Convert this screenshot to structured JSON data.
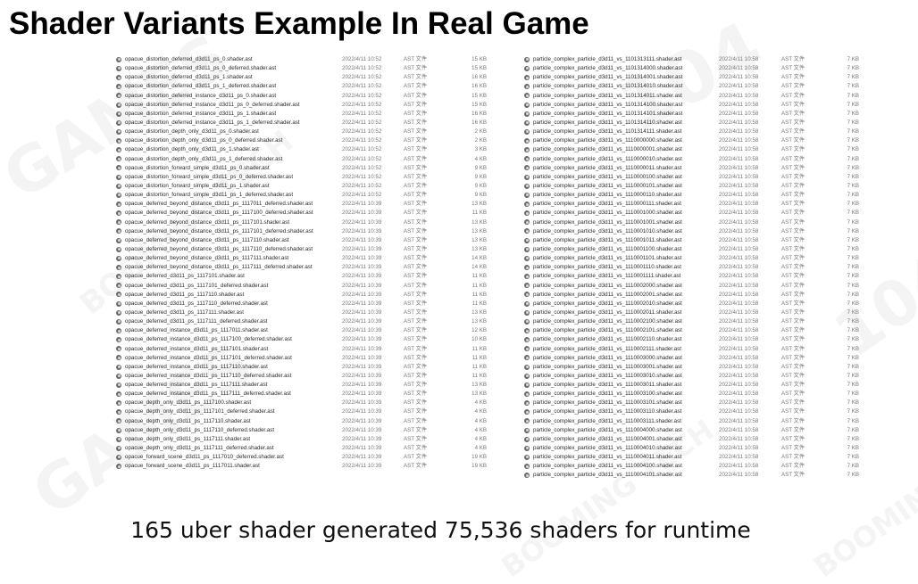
{
  "title": "Shader Variants Example In Real Game",
  "caption": "165 uber shader generated 75,536 shaders for runtime",
  "watermarks": [
    "104",
    "GAMES",
    "BOOMING TECH",
    "104",
    "GAMES",
    "BOOMING TECH",
    "BOOMING TECH"
  ],
  "left_files": [
    {
      "name": "opacue_distortion_deferred_d3d11_ps_0.shader.ast",
      "date": "2022/4/11 10:52",
      "type": "AST 文件",
      "size": "15 KB"
    },
    {
      "name": "opacue_distortion_deferred_d3d11_ps_0_deferred.shader.ast",
      "date": "2022/4/11 10:52",
      "type": "AST 文件",
      "size": "15 KB"
    },
    {
      "name": "opacue_distortion_deferred_d3d11_ps_1.shader.ast",
      "date": "2022/4/11 10:52",
      "type": "AST 文件",
      "size": "16 KB"
    },
    {
      "name": "opacue_distortion_deferred_d3d11_ps_1_deferred.shader.ast",
      "date": "2022/4/11 10:52",
      "type": "AST 文件",
      "size": "16 KB"
    },
    {
      "name": "opacue_distortion_deferred_instance_d3d11_ps_0.shader.ast",
      "date": "2022/4/11 10:52",
      "type": "AST 文件",
      "size": "15 KB"
    },
    {
      "name": "opacue_distortion_deferred_instance_d3d11_ps_0_deferred.shader.ast",
      "date": "2022/4/11 10:52",
      "type": "AST 文件",
      "size": "15 KB"
    },
    {
      "name": "opacue_distortion_deferred_instance_d3d11_ps_1.shader.ast",
      "date": "2022/4/11 10:52",
      "type": "AST 文件",
      "size": "16 KB"
    },
    {
      "name": "opacue_distortion_deferred_instance_d3d11_ps_1_deferred.shader.ast",
      "date": "2022/4/11 10:52",
      "type": "AST 文件",
      "size": "16 KB"
    },
    {
      "name": "opacue_distortion_depth_only_d3d11_ps_0.shader.ast",
      "date": "2022/4/11 10:52",
      "type": "AST 文件",
      "size": "2 KB"
    },
    {
      "name": "opacue_distortion_depth_only_d3d11_ps_0_deferred.shader.ast",
      "date": "2022/4/11 10:52",
      "type": "AST 文件",
      "size": "2 KB"
    },
    {
      "name": "opacue_distortion_depth_only_d3d11_ps_1.shader.ast",
      "date": "2022/4/11 10:52",
      "type": "AST 文件",
      "size": "3 KB"
    },
    {
      "name": "opacue_distortion_depth_only_d3d11_ps_1_deferred.shader.ast",
      "date": "2022/4/11 10:52",
      "type": "AST 文件",
      "size": "4 KB"
    },
    {
      "name": "opacue_distortion_forward_simple_d3d11_ps_0.shader.ast",
      "date": "2022/4/11 10:52",
      "type": "AST 文件",
      "size": "9 KB"
    },
    {
      "name": "opacue_distortion_forward_simple_d3d11_ps_0_deferred.shader.ast",
      "date": "2022/4/11 10:52",
      "type": "AST 文件",
      "size": "9 KB"
    },
    {
      "name": "opacue_distortion_forward_simple_d3d11_ps_1.shader.ast",
      "date": "2022/4/11 10:52",
      "type": "AST 文件",
      "size": "9 KB"
    },
    {
      "name": "opacue_distortion_forward_simple_d3d11_ps_1_deferred.shader.ast",
      "date": "2022/4/11 10:52",
      "type": "AST 文件",
      "size": "9 KB"
    },
    {
      "name": "opacue_deferred_beyond_distance_d3d11_ps_1117011_deferred.shader.ast",
      "date": "2022/4/11 10:39",
      "type": "AST 文件",
      "size": "13 KB"
    },
    {
      "name": "opacue_deferred_beyond_distance_d3d11_ps_1117100_deferred.shader.ast",
      "date": "2022/4/11 10:39",
      "type": "AST 文件",
      "size": "11 KB"
    },
    {
      "name": "opacue_deferred_beyond_distance_d3d11_ps_1117101.shader.ast",
      "date": "2022/4/11 10:39",
      "type": "AST 文件",
      "size": "13 KB"
    },
    {
      "name": "opacue_deferred_beyond_distance_d3d11_ps_1117101_deferred.shader.ast",
      "date": "2022/4/11 10:39",
      "type": "AST 文件",
      "size": "13 KB"
    },
    {
      "name": "opacue_deferred_beyond_distance_d3d11_ps_1117110.shader.ast",
      "date": "2022/4/11 10:39",
      "type": "AST 文件",
      "size": "13 KB"
    },
    {
      "name": "opacue_deferred_beyond_distance_d3d11_ps_1117110_deferred.shader.ast",
      "date": "2022/4/11 10:39",
      "type": "AST 文件",
      "size": "13 KB"
    },
    {
      "name": "opacue_deferred_beyond_distance_d3d11_ps_1117111.shader.ast",
      "date": "2022/4/11 10:39",
      "type": "AST 文件",
      "size": "14 KB"
    },
    {
      "name": "opacue_deferred_beyond_distance_d3d11_ps_1117111_deferred.shader.ast",
      "date": "2022/4/11 10:39",
      "type": "AST 文件",
      "size": "14 KB"
    },
    {
      "name": "opacue_deferred_d3d11_ps_1117101.shader.ast",
      "date": "2022/4/11 10:39",
      "type": "AST 文件",
      "size": "11 KB"
    },
    {
      "name": "opacue_deferred_d3d11_ps_1117101_deferred.shader.ast",
      "date": "2022/4/11 10:39",
      "type": "AST 文件",
      "size": "11 KB"
    },
    {
      "name": "opacue_deferred_d3d11_ps_1117110.shader.ast",
      "date": "2022/4/11 10:39",
      "type": "AST 文件",
      "size": "11 KB"
    },
    {
      "name": "opacue_deferred_d3d11_ps_1117110_deferred.shader.ast",
      "date": "2022/4/11 10:39",
      "type": "AST 文件",
      "size": "11 KB"
    },
    {
      "name": "opacue_deferred_d3d11_ps_1117111.shader.ast",
      "date": "2022/4/11 10:39",
      "type": "AST 文件",
      "size": "13 KB"
    },
    {
      "name": "opacue_deferred_d3d11_ps_1117111_deferred.shader.ast",
      "date": "2022/4/11 10:39",
      "type": "AST 文件",
      "size": "13 KB"
    },
    {
      "name": "opacue_deferred_instance_d3d11_ps_1117011.shader.ast",
      "date": "2022/4/11 10:39",
      "type": "AST 文件",
      "size": "12 KB"
    },
    {
      "name": "opacue_deferred_instance_d3d11_ps_1117100_deferred.shader.ast",
      "date": "2022/4/11 10:39",
      "type": "AST 文件",
      "size": "10 KB"
    },
    {
      "name": "opacue_deferred_instance_d3d11_ps_1117101.shader.ast",
      "date": "2022/4/11 10:39",
      "type": "AST 文件",
      "size": "11 KB"
    },
    {
      "name": "opacue_deferred_instance_d3d11_ps_1117101_deferred.shader.ast",
      "date": "2022/4/11 10:39",
      "type": "AST 文件",
      "size": "11 KB"
    },
    {
      "name": "opacue_deferred_instance_d3d11_ps_1117110.shader.ast",
      "date": "2022/4/11 10:39",
      "type": "AST 文件",
      "size": "11 KB"
    },
    {
      "name": "opacue_deferred_instance_d3d11_ps_1117110_deferred.shader.ast",
      "date": "2022/4/11 10:39",
      "type": "AST 文件",
      "size": "11 KB"
    },
    {
      "name": "opacue_deferred_instance_d3d11_ps_1117111.shader.ast",
      "date": "2022/4/11 10:39",
      "type": "AST 文件",
      "size": "13 KB"
    },
    {
      "name": "opacue_deferred_instance_d3d11_ps_1117111_deferred.shader.ast",
      "date": "2022/4/11 10:39",
      "type": "AST 文件",
      "size": "13 KB"
    },
    {
      "name": "opacue_depth_only_d3d11_ps_1117100.shader.ast",
      "date": "2022/4/11 10:39",
      "type": "AST 文件",
      "size": "4 KB"
    },
    {
      "name": "opacue_depth_only_d3d11_ps_1117101_deferred.shader.ast",
      "date": "2022/4/11 10:39",
      "type": "AST 文件",
      "size": "4 KB"
    },
    {
      "name": "opacue_depth_only_d3d11_ps_1117110.shader.ast",
      "date": "2022/4/11 10:39",
      "type": "AST 文件",
      "size": "4 KB"
    },
    {
      "name": "opacue_depth_only_d3d11_ps_1117110_deferred.shader.ast",
      "date": "2022/4/11 10:39",
      "type": "AST 文件",
      "size": "4 KB"
    },
    {
      "name": "opacue_depth_only_d3d11_ps_1117111.shader.ast",
      "date": "2022/4/11 10:39",
      "type": "AST 文件",
      "size": "4 KB"
    },
    {
      "name": "opacue_depth_only_d3d11_ps_1117111_deferred.shader.ast",
      "date": "2022/4/11 10:39",
      "type": "AST 文件",
      "size": "4 KB"
    },
    {
      "name": "opacue_forward_scene_d3d11_ps_1117010_deferred.shader.ast",
      "date": "2022/4/11 10:39",
      "type": "AST 文件",
      "size": "19 KB"
    },
    {
      "name": "opacue_forward_scene_d3d11_ps_1117011.shader.ast",
      "date": "2022/4/11 10:39",
      "type": "AST 文件",
      "size": "19 KB"
    }
  ],
  "right_files": [
    {
      "name": "particle_complex_particle_d3d11_vs_1101313111.shader.ast",
      "date": "2022/4/11 10:58",
      "type": "AST 文件",
      "size": "7 KB"
    },
    {
      "name": "particle_complex_particle_d3d11_vs_1101314000.shader.ast",
      "date": "2022/4/11 10:58",
      "type": "AST 文件",
      "size": "7 KB"
    },
    {
      "name": "particle_complex_particle_d3d11_vs_1101314001.shader.ast",
      "date": "2022/4/11 10:58",
      "type": "AST 文件",
      "size": "7 KB"
    },
    {
      "name": "particle_complex_particle_d3d11_vs_1101314010.shader.ast",
      "date": "2022/4/11 10:58",
      "type": "AST 文件",
      "size": "7 KB"
    },
    {
      "name": "particle_complex_particle_d3d11_vs_1101314011.shader.ast",
      "date": "2022/4/11 10:58",
      "type": "AST 文件",
      "size": "7 KB"
    },
    {
      "name": "particle_complex_particle_d3d11_vs_1101314100.shader.ast",
      "date": "2022/4/11 10:58",
      "type": "AST 文件",
      "size": "7 KB"
    },
    {
      "name": "particle_complex_particle_d3d11_vs_1101314101.shader.ast",
      "date": "2022/4/11 10:58",
      "type": "AST 文件",
      "size": "7 KB"
    },
    {
      "name": "particle_complex_particle_d3d11_vs_1101314110.shader.ast",
      "date": "2022/4/11 10:58",
      "type": "AST 文件",
      "size": "7 KB"
    },
    {
      "name": "particle_complex_particle_d3d11_vs_1101314111.shader.ast",
      "date": "2022/4/11 10:58",
      "type": "AST 文件",
      "size": "7 KB"
    },
    {
      "name": "particle_complex_particle_d3d11_vs_1110000000.shader.ast",
      "date": "2022/4/11 10:58",
      "type": "AST 文件",
      "size": "7 KB"
    },
    {
      "name": "particle_complex_particle_d3d11_vs_1110000001.shader.ast",
      "date": "2022/4/11 10:58",
      "type": "AST 文件",
      "size": "7 KB"
    },
    {
      "name": "particle_complex_particle_d3d11_vs_1110000010.shader.ast",
      "date": "2022/4/11 10:58",
      "type": "AST 文件",
      "size": "7 KB"
    },
    {
      "name": "particle_complex_particle_d3d11_vs_1110000011.shader.ast",
      "date": "2022/4/11 10:58",
      "type": "AST 文件",
      "size": "7 KB"
    },
    {
      "name": "particle_complex_particle_d3d11_vs_1110000100.shader.ast",
      "date": "2022/4/11 10:58",
      "type": "AST 文件",
      "size": "7 KB"
    },
    {
      "name": "particle_complex_particle_d3d11_vs_1110000101.shader.ast",
      "date": "2022/4/11 10:58",
      "type": "AST 文件",
      "size": "7 KB"
    },
    {
      "name": "particle_complex_particle_d3d11_vs_1110000110.shader.ast",
      "date": "2022/4/11 10:58",
      "type": "AST 文件",
      "size": "7 KB"
    },
    {
      "name": "particle_complex_particle_d3d11_vs_1110000111.shader.ast",
      "date": "2022/4/11 10:58",
      "type": "AST 文件",
      "size": "7 KB"
    },
    {
      "name": "particle_complex_particle_d3d11_vs_1110001000.shader.ast",
      "date": "2022/4/11 10:58",
      "type": "AST 文件",
      "size": "7 KB"
    },
    {
      "name": "particle_complex_particle_d3d11_vs_1110001001.shader.ast",
      "date": "2022/4/11 10:58",
      "type": "AST 文件",
      "size": "7 KB"
    },
    {
      "name": "particle_complex_particle_d3d11_vs_1110001010.shader.ast",
      "date": "2022/4/11 10:58",
      "type": "AST 文件",
      "size": "7 KB"
    },
    {
      "name": "particle_complex_particle_d3d11_vs_1110001011.shader.ast",
      "date": "2022/4/11 10:58",
      "type": "AST 文件",
      "size": "7 KB"
    },
    {
      "name": "particle_complex_particle_d3d11_vs_1110001100.shader.ast",
      "date": "2022/4/11 10:58",
      "type": "AST 文件",
      "size": "7 KB"
    },
    {
      "name": "particle_complex_particle_d3d11_vs_1110001101.shader.ast",
      "date": "2022/4/11 10:58",
      "type": "AST 文件",
      "size": "7 KB"
    },
    {
      "name": "particle_complex_particle_d3d11_vs_1110001110.shader.ast",
      "date": "2022/4/11 10:58",
      "type": "AST 文件",
      "size": "7 KB"
    },
    {
      "name": "particle_complex_particle_d3d11_vs_1110001111.shader.ast",
      "date": "2022/4/11 10:58",
      "type": "AST 文件",
      "size": "7 KB"
    },
    {
      "name": "particle_complex_particle_d3d11_vs_1110002000.shader.ast",
      "date": "2022/4/11 10:58",
      "type": "AST 文件",
      "size": "7 KB"
    },
    {
      "name": "particle_complex_particle_d3d11_vs_1110002001.shader.ast",
      "date": "2022/4/11 10:58",
      "type": "AST 文件",
      "size": "7 KB"
    },
    {
      "name": "particle_complex_particle_d3d11_vs_1110002010.shader.ast",
      "date": "2022/4/11 10:58",
      "type": "AST 文件",
      "size": "7 KB"
    },
    {
      "name": "particle_complex_particle_d3d11_vs_1110002011.shader.ast",
      "date": "2022/4/11 10:58",
      "type": "AST 文件",
      "size": "7 KB"
    },
    {
      "name": "particle_complex_particle_d3d11_vs_1110002100.shader.ast",
      "date": "2022/4/11 10:58",
      "type": "AST 文件",
      "size": "7 KB"
    },
    {
      "name": "particle_complex_particle_d3d11_vs_1110002101.shader.ast",
      "date": "2022/4/11 10:58",
      "type": "AST 文件",
      "size": "7 KB"
    },
    {
      "name": "particle_complex_particle_d3d11_vs_1110002110.shader.ast",
      "date": "2022/4/11 10:58",
      "type": "AST 文件",
      "size": "7 KB"
    },
    {
      "name": "particle_complex_particle_d3d11_vs_1110002111.shader.ast",
      "date": "2022/4/11 10:58",
      "type": "AST 文件",
      "size": "7 KB"
    },
    {
      "name": "particle_complex_particle_d3d11_vs_1110003000.shader.ast",
      "date": "2022/4/11 10:58",
      "type": "AST 文件",
      "size": "7 KB"
    },
    {
      "name": "particle_complex_particle_d3d11_vs_1110003001.shader.ast",
      "date": "2022/4/11 10:58",
      "type": "AST 文件",
      "size": "7 KB"
    },
    {
      "name": "particle_complex_particle_d3d11_vs_1110003010.shader.ast",
      "date": "2022/4/11 10:58",
      "type": "AST 文件",
      "size": "7 KB"
    },
    {
      "name": "particle_complex_particle_d3d11_vs_1110003011.shader.ast",
      "date": "2022/4/11 10:58",
      "type": "AST 文件",
      "size": "7 KB"
    },
    {
      "name": "particle_complex_particle_d3d11_vs_1110003100.shader.ast",
      "date": "2022/4/11 10:58",
      "type": "AST 文件",
      "size": "7 KB"
    },
    {
      "name": "particle_complex_particle_d3d11_vs_1110003101.shader.ast",
      "date": "2022/4/11 10:58",
      "type": "AST 文件",
      "size": "7 KB"
    },
    {
      "name": "particle_complex_particle_d3d11_vs_1110003110.shader.ast",
      "date": "2022/4/11 10:58",
      "type": "AST 文件",
      "size": "7 KB"
    },
    {
      "name": "particle_complex_particle_d3d11_vs_1110003111.shader.ast",
      "date": "2022/4/11 10:58",
      "type": "AST 文件",
      "size": "7 KB"
    },
    {
      "name": "particle_complex_particle_d3d11_vs_1110004000.shader.ast",
      "date": "2022/4/11 10:58",
      "type": "AST 文件",
      "size": "7 KB"
    },
    {
      "name": "particle_complex_particle_d3d11_vs_1110004001.shader.ast",
      "date": "2022/4/11 10:58",
      "type": "AST 文件",
      "size": "7 KB"
    },
    {
      "name": "particle_complex_particle_d3d11_vs_1110004010.shader.ast",
      "date": "2022/4/11 10:58",
      "type": "AST 文件",
      "size": "7 KB"
    },
    {
      "name": "particle_complex_particle_d3d11_vs_1110004011.shader.ast",
      "date": "2022/4/11 10:58",
      "type": "AST 文件",
      "size": "7 KB"
    },
    {
      "name": "particle_complex_particle_d3d11_vs_1110004100.shader.ast",
      "date": "2022/4/11 10:58",
      "type": "AST 文件",
      "size": "7 KB"
    },
    {
      "name": "particle_complex_particle_d3d11_vs_1110004101.shader.ast",
      "date": "2022/4/11 10:58",
      "type": "AST 文件",
      "size": "7 KB"
    }
  ]
}
